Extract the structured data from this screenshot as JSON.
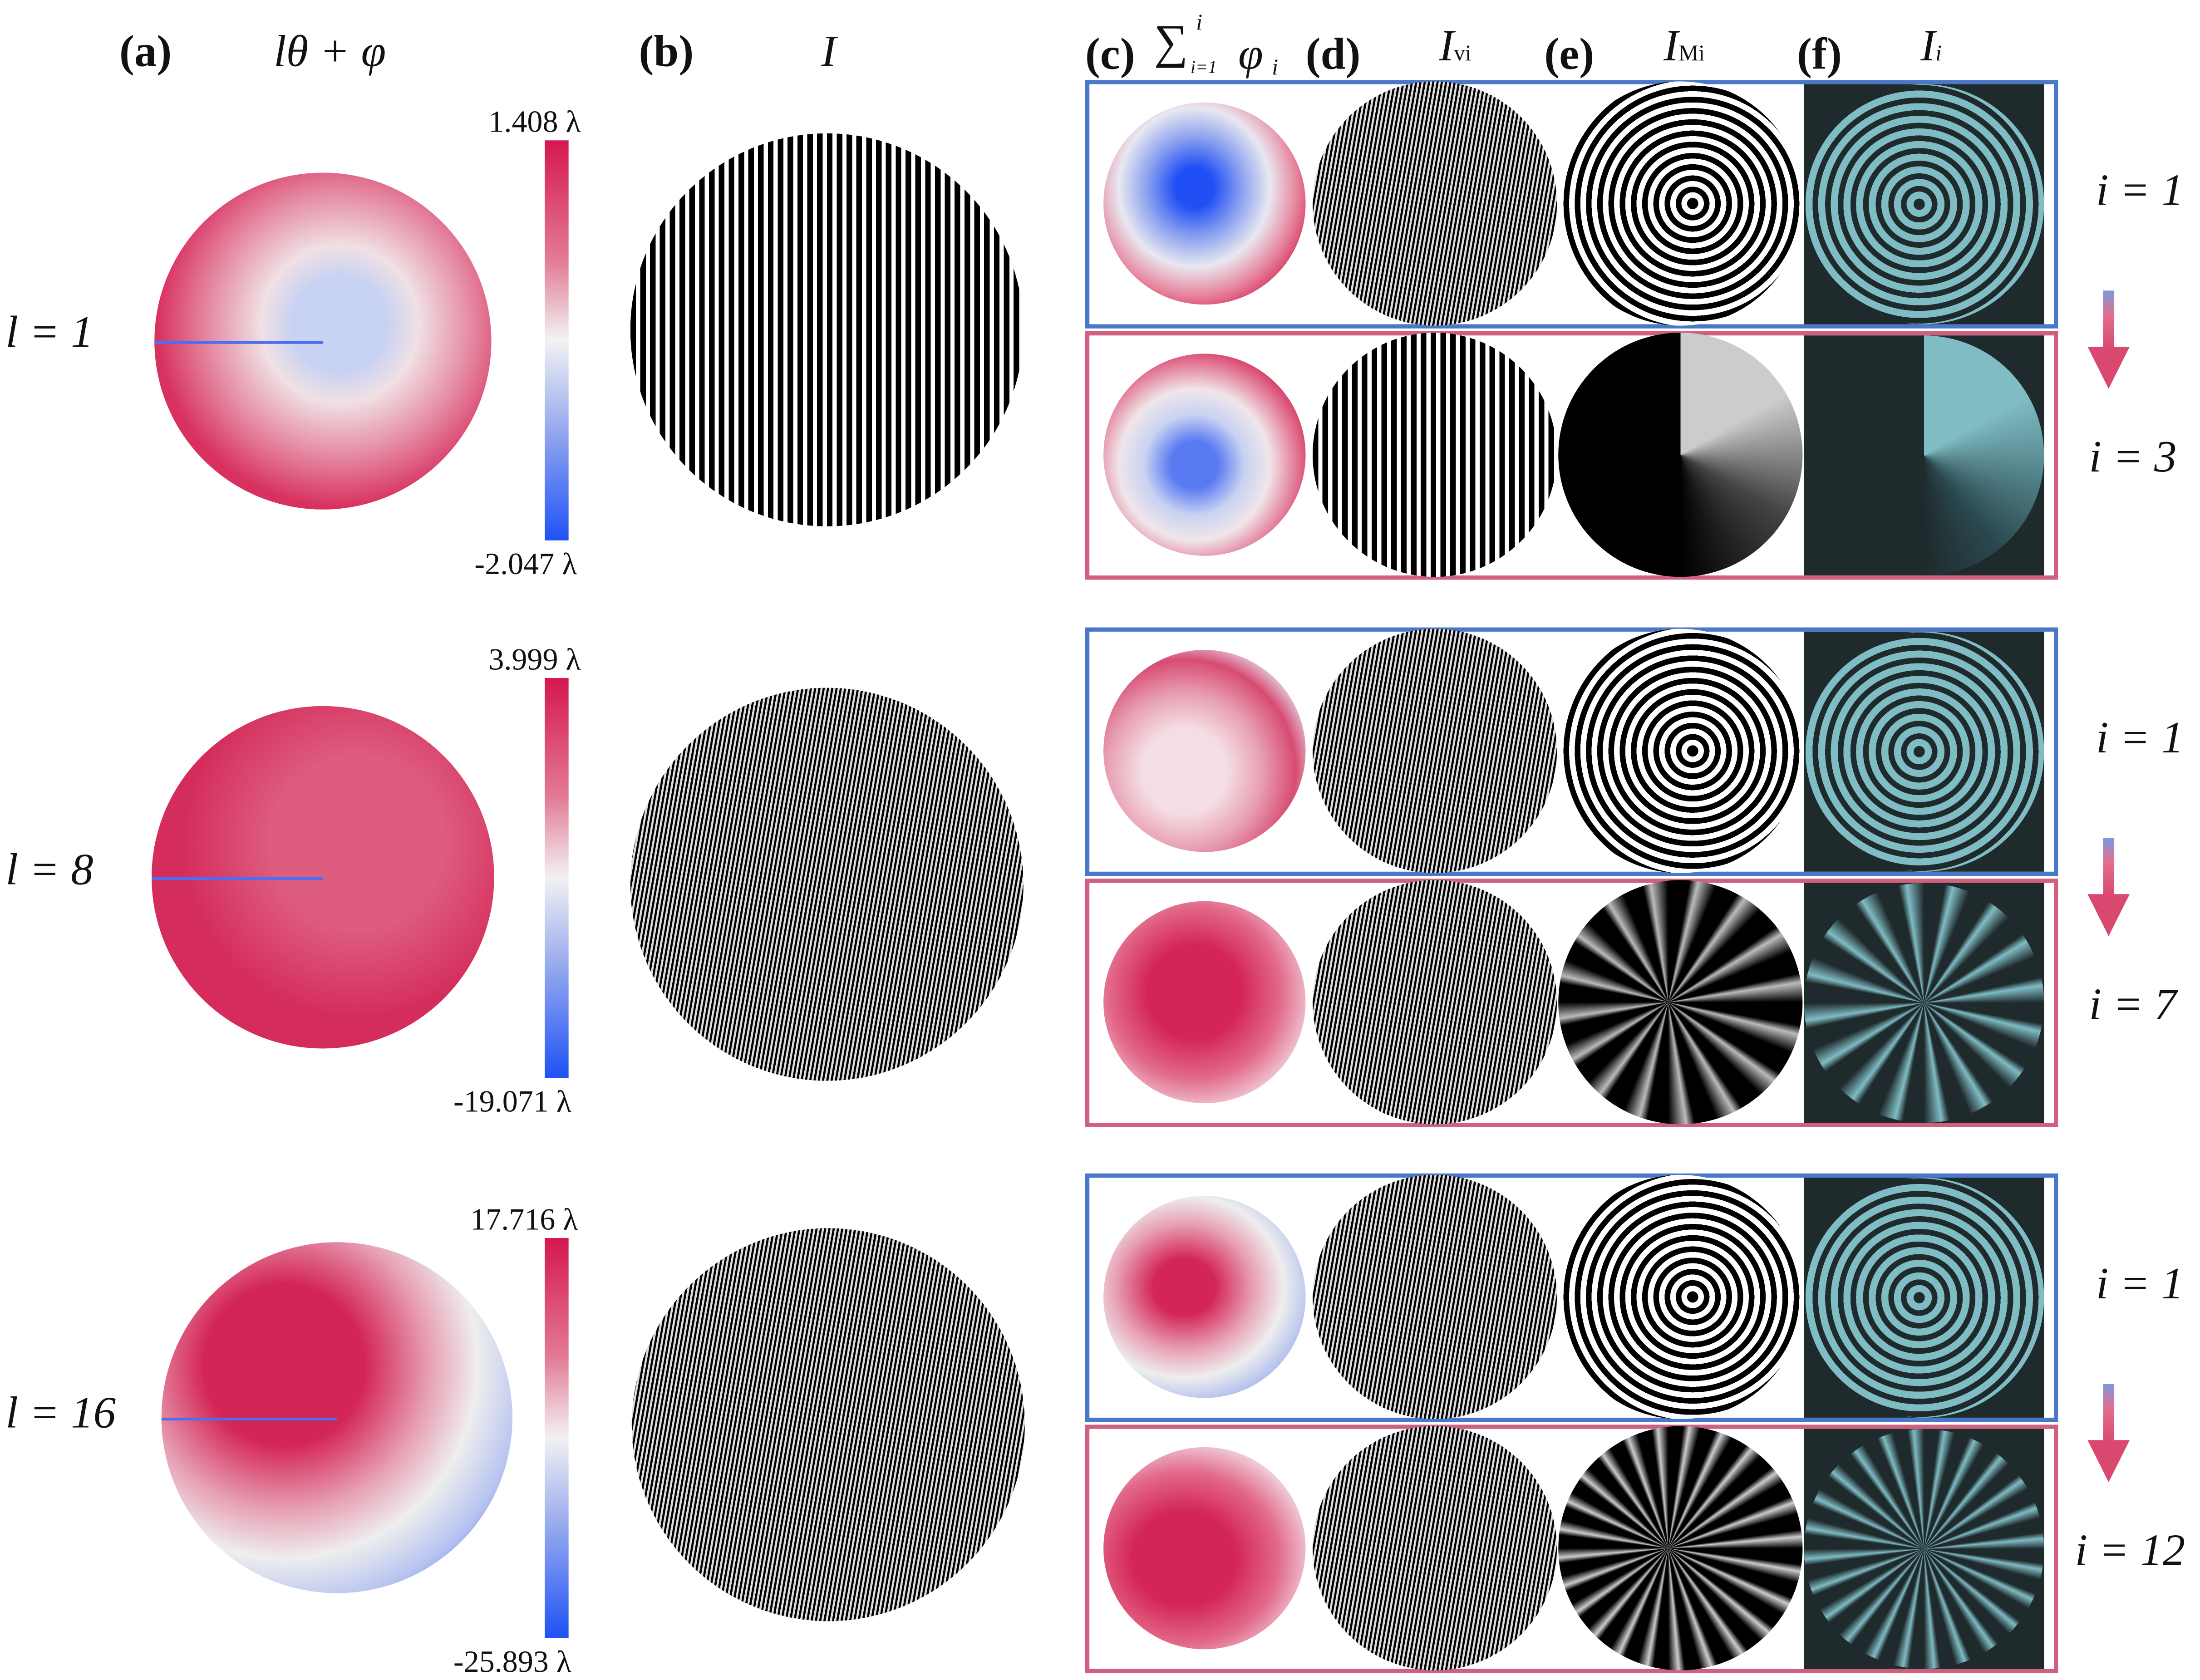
{
  "headers": {
    "a": "(a)",
    "a_math": "lθ + φ",
    "b": "(b)",
    "b_math": "I",
    "c": "(c)",
    "c_sum": "∑",
    "c_sup": "i",
    "c_subsum": "i=1",
    "c_phi": "φ",
    "c_phi_sub": "i",
    "d": "(d)",
    "d_math": "I",
    "d_sub": "vi",
    "e": "(e)",
    "e_math": "I",
    "e_sub": "Mi",
    "f": "(f)",
    "f_math": "I",
    "f_sub": "i"
  },
  "rows": [
    {
      "label": "l = 1",
      "cb_max": "1.408 λ",
      "cb_min": "-2.047 λ",
      "i_top": "i = 1",
      "i_bottom": "i = 3"
    },
    {
      "label": "l = 8",
      "cb_max": "3.999 λ",
      "cb_min": "-19.071 λ",
      "i_top": "i = 1",
      "i_bottom": "i = 7"
    },
    {
      "label": "l = 16",
      "cb_max": "17.716 λ",
      "cb_min": "-25.893 λ",
      "i_top": "i = 1",
      "i_bottom": "i = 12"
    }
  ],
  "colors": {
    "phase_max": "#d5174f",
    "phase_min": "#1f52f5",
    "phase_mid": "#f2f2f2",
    "box_first_iteration": "#4a78c8",
    "box_last_iteration": "#d0607e",
    "intensity_cyan": "#7fbcc4",
    "intensity_bg": "#1f2a2c"
  },
  "icons": {
    "iteration_arrow": "arrow-down-icon"
  }
}
